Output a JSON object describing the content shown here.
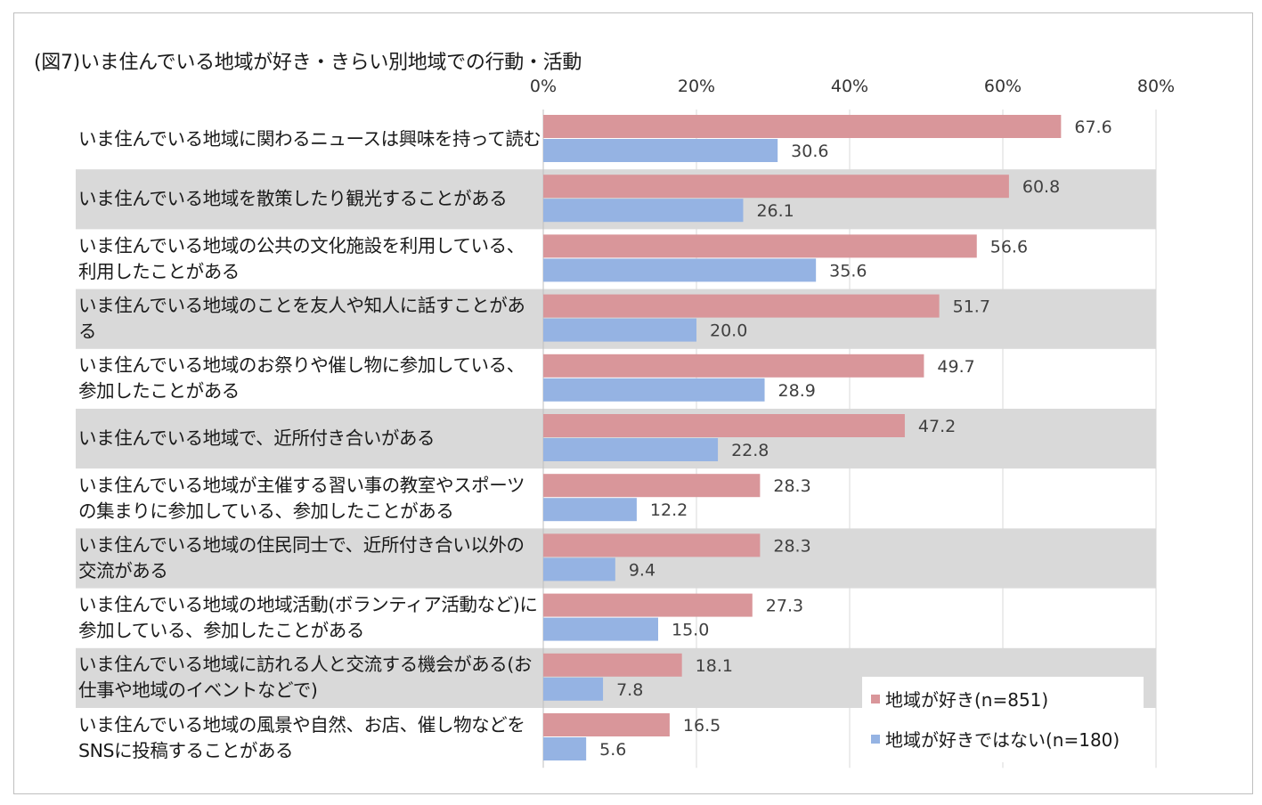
{
  "chart_data": {
    "type": "bar",
    "orientation": "horizontal",
    "title": "(図7)いま住んでいる地域が好き・きらい別地域での行動・活動",
    "categories": [
      "いま住んでいる地域に関わるニュースは興味を持って読む",
      "いま住んでいる地域を散策したり観光することがある",
      "いま住んでいる地域の公共の文化施設を利用している、利用したことがある",
      "いま住んでいる地域のことを友人や知人に話すことがある",
      "いま住んでいる地域のお祭りや催し物に参加している、参加したことがある",
      "いま住んでいる地域で、近所付き合いがある",
      "いま住んでいる地域が主催する習い事の教室やスポーツの集まりに参加している、参加したことがある",
      "いま住んでいる地域の住民同士で、近所付き合い以外の交流がある",
      "いま住んでいる地域の地域活動(ボランティア活動など)に参加している、参加したことがある",
      "いま住んでいる地域に訪れる人と交流する機会がある(お仕事や地域のイベントなどで)",
      "いま住んでいる地域の風景や自然、お店、催し物などをSNSに投稿することがある"
    ],
    "series": [
      {
        "name": "地域が好き(n=851)",
        "color": "#d9969a",
        "values": [
          67.6,
          60.8,
          56.6,
          51.7,
          49.7,
          47.2,
          28.3,
          28.3,
          27.3,
          18.1,
          16.5
        ],
        "labels": [
          "67.6",
          "60.8",
          "56.6",
          "51.7",
          "49.7",
          "47.2",
          "28.3",
          "28.3",
          "27.3",
          "18.1",
          "16.5"
        ]
      },
      {
        "name": "地域が好きではない(n=180)",
        "color": "#95b3e3",
        "values": [
          30.6,
          26.1,
          35.6,
          20.0,
          28.9,
          22.8,
          12.2,
          9.4,
          15.0,
          7.8,
          5.6
        ],
        "labels": [
          "30.6",
          "26.1",
          "35.6",
          "20.0",
          "28.9",
          "22.8",
          "12.2",
          "9.4",
          "15.0",
          "7.8",
          "5.6"
        ]
      }
    ],
    "xlim": [
      0,
      80
    ],
    "ticks": [
      0,
      20,
      40,
      60,
      80
    ],
    "tick_labels": [
      "0%",
      "20%",
      "40%",
      "60%",
      "80%"
    ],
    "grid": true,
    "alternate_row_shading": "#d9d9d9",
    "gridline_color": "#d9d9d9",
    "legend_position": "bottom-right"
  }
}
